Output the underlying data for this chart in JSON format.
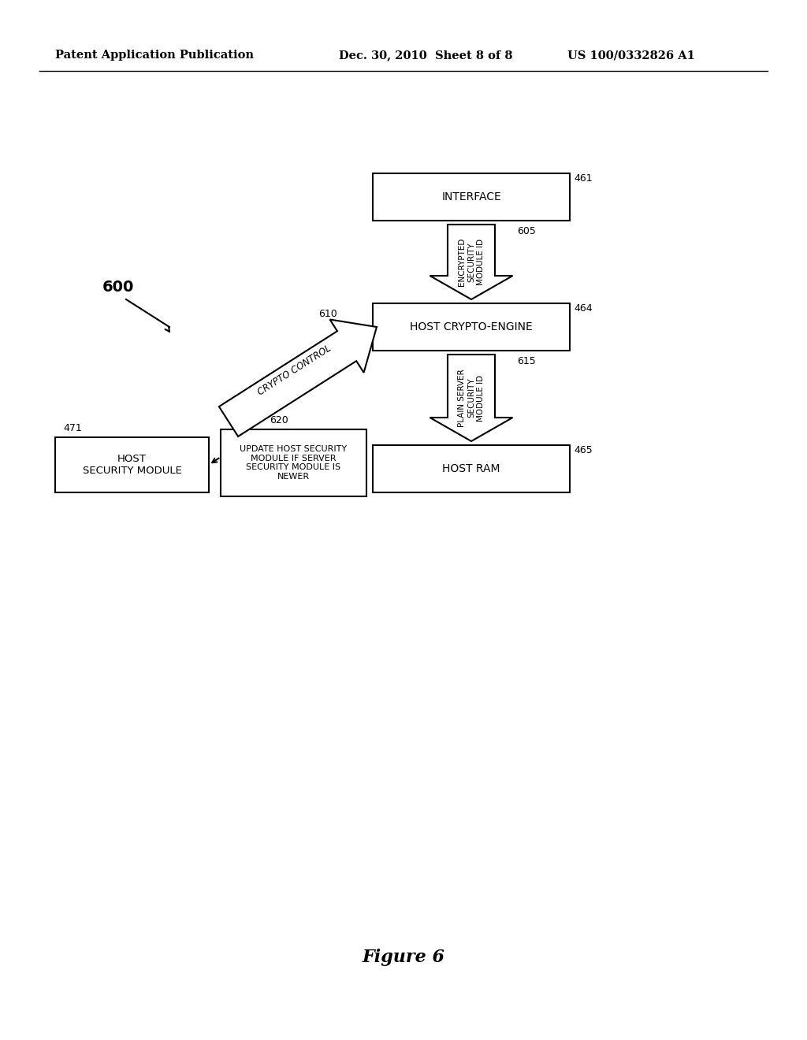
{
  "background_color": "#ffffff",
  "header_left": "Patent Application Publication",
  "header_center": "Dec. 30, 2010  Sheet 8 of 8",
  "header_right": "US 100/0332826 A1",
  "figure_label": "Figure 6",
  "diagram_label": "600"
}
